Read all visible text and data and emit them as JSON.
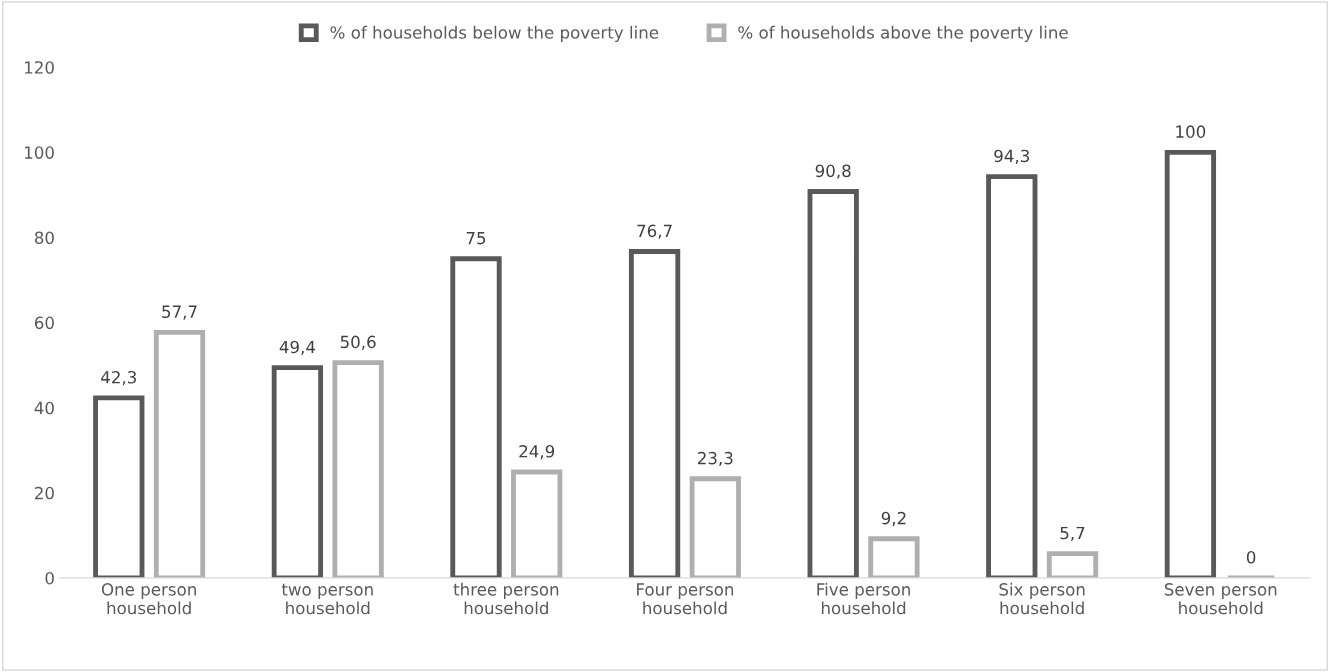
{
  "chart_data": {
    "type": "bar",
    "categories": [
      "One person\nhousehold",
      "two person\nhousehold",
      "three person\nhousehold",
      "Four person\nhousehold",
      "Five person\nhousehold",
      "Six person\nhousehold",
      "Seven person\nhousehold"
    ],
    "series": [
      {
        "name": "% of households below the poverty line",
        "color": "#595959",
        "values": [
          42.3,
          49.4,
          75,
          76.7,
          90.8,
          94.3,
          100
        ],
        "value_labels": [
          "42,3",
          "49,4",
          "75",
          "76,7",
          "90,8",
          "94,3",
          "100"
        ]
      },
      {
        "name": "% of households above the poverty line",
        "color": "#afafaf",
        "values": [
          57.7,
          50.6,
          24.9,
          23.3,
          9.2,
          5.7,
          0
        ],
        "value_labels": [
          "57,7",
          "50,6",
          "24,9",
          "23,3",
          "9,2",
          "5,7",
          "0"
        ]
      }
    ],
    "ylim": [
      0,
      120
    ],
    "yticks": [
      0,
      20,
      40,
      60,
      80,
      100,
      120
    ],
    "grid": false,
    "legend": "top"
  }
}
